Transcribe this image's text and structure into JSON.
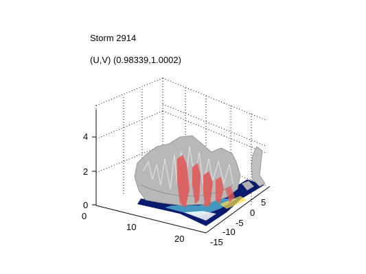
{
  "figure": {
    "title": "Storm 2914",
    "subtitle": "(U,V) (0.98339,1.0002)"
  },
  "chart_data": {
    "type": "isosurface-3d",
    "title": "Storm 2914",
    "subtitle": "(U,V) (0.98339,1.0002)",
    "xlabel": "",
    "ylabel": "",
    "zlabel": "",
    "x_ticks": [
      "0",
      "10",
      "20"
    ],
    "y_ticks": [
      "5",
      "0",
      "-5",
      "-10",
      "-15"
    ],
    "z_ticks": [
      "0",
      "2",
      "4"
    ],
    "xlim": [
      0,
      25
    ],
    "ylim": [
      -15,
      7
    ],
    "zlim": [
      0,
      5.5
    ],
    "grid": true,
    "series": [
      {
        "surface": "outer",
        "color": "#b8b8b8"
      },
      {
        "surface": "core",
        "color": "#e05a5a"
      },
      {
        "surface": "base-low",
        "color": "#0a1a6e"
      },
      {
        "surface": "base-mid",
        "color": "#4aa6c8"
      }
    ]
  }
}
